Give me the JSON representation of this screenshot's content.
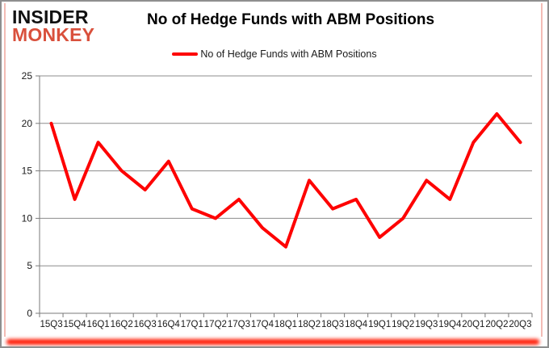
{
  "header": {
    "logo_line1": "INSIDER",
    "logo_line2": "MONKEY",
    "title": "No of Hedge Funds with ABM Positions"
  },
  "legend": {
    "label": "No of Hedge Funds with ABM Positions"
  },
  "colors": {
    "line": "#fe0000",
    "grid": "#8c8c8c",
    "axis": "#7a7a7a",
    "logo_red": "#d9503c",
    "frame_gray": "#8f8f8f",
    "frame_pink": "#f3bcb5",
    "shadow_red": "#ff1600"
  },
  "chart_data": {
    "type": "line",
    "title": "No of Hedge Funds with ABM Positions",
    "categories": [
      "15Q3",
      "15Q4",
      "16Q1",
      "16Q2",
      "16Q3",
      "16Q4",
      "17Q1",
      "17Q2",
      "17Q3",
      "17Q4",
      "18Q1",
      "18Q2",
      "18Q3",
      "18Q4",
      "19Q1",
      "19Q2",
      "19Q3",
      "19Q4",
      "20Q1",
      "20Q2",
      "20Q3"
    ],
    "values": [
      20,
      12,
      18,
      15,
      13,
      16,
      11,
      10,
      12,
      9,
      7,
      14,
      11,
      12,
      8,
      10,
      14,
      12,
      18,
      21,
      18
    ],
    "series_name": "No of Hedge Funds with ABM Positions",
    "xlabel": "",
    "ylabel": "",
    "ylim": [
      0,
      25
    ],
    "ytick_step": 5,
    "grid": "horizontal",
    "legend_position": "top-center"
  }
}
